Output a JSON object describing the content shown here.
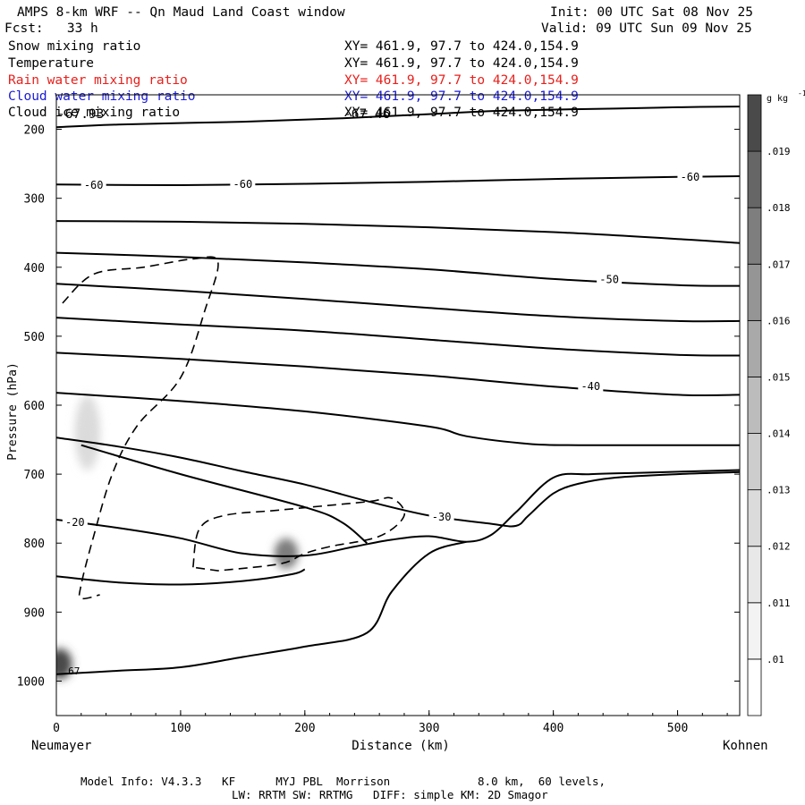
{
  "header": {
    "title": "AMPS 8-km WRF -- Qn Maud Land Coast window",
    "init": "Init: 00 UTC Sat 08 Nov 25",
    "fcst": "Fcst:   33 h",
    "valid": "Valid: 09 UTC Sun 09 Nov 25"
  },
  "fields": [
    {
      "name": "Snow mixing ratio",
      "xy": "XY= 461.9, 97.7 to 424.0,154.9",
      "color": "#000000"
    },
    {
      "name": "Temperature",
      "xy": "XY= 461.9, 97.7 to 424.0,154.9",
      "color": "#000000"
    },
    {
      "name": "Rain water mixing ratio",
      "xy": "XY= 461.9, 97.7 to 424.0,154.9",
      "color": "#e8201c"
    },
    {
      "name": "Cloud water mixing ratio",
      "xy": "XY= 461.9, 97.7 to 424.0,154.9",
      "color": "#1a1ad8"
    },
    {
      "name": "Cloud ice mixing ratio",
      "xy": "XY= 461.9, 97.7 to 424.0,154.9",
      "color": "#000000"
    }
  ],
  "overlay_labels": {
    "top_left": "-67.93",
    "top_mid": "-67.46"
  },
  "footer": {
    "line1": "Model Info: V4.3.3   KF      MYJ PBL  Morrison             8.0 km,  60 levels,",
    "line2": "LW: RRTM SW: RRTMG   DIFF: simple KM: 2D Smagor"
  },
  "chart_data": {
    "type": "cross-section",
    "xlabel": "Distance (km)",
    "ylabel": "Pressure (hPa)",
    "xlim": [
      0,
      550
    ],
    "ylim": [
      1050,
      150
    ],
    "x_ticks": [
      0,
      100,
      200,
      300,
      400,
      500
    ],
    "y_ticks": [
      200,
      300,
      400,
      500,
      600,
      700,
      800,
      900,
      1000
    ],
    "x_end_labels": {
      "left": "Neumayer",
      "right": "Kohnen"
    },
    "colorbar": {
      "unit": "g kg",
      "unit_exp": "-1",
      "levels": [
        ".01",
        ".011",
        ".012",
        ".013",
        ".014",
        ".015",
        ".016",
        ".017",
        ".018",
        ".019"
      ],
      "colors": [
        "#ffffff",
        "#f3f3f3",
        "#e8e8e8",
        "#dbdbdb",
        "#cdcdcd",
        "#bcbcbc",
        "#a9a9a9",
        "#959595",
        "#7e7e7e",
        "#666666",
        "#4a4a4a"
      ]
    },
    "temperature_contours": [
      {
        "level": null,
        "points": [
          [
            0,
            197
          ],
          [
            50,
            193
          ],
          [
            150,
            189
          ],
          [
            230,
            184
          ],
          [
            300,
            178
          ],
          [
            360,
            173
          ],
          [
            450,
            170
          ],
          [
            500,
            168
          ],
          [
            550,
            167
          ]
        ]
      },
      {
        "level": -60,
        "points": [
          [
            0,
            280
          ],
          [
            100,
            281
          ],
          [
            200,
            279
          ],
          [
            300,
            276
          ],
          [
            400,
            272
          ],
          [
            500,
            269
          ],
          [
            550,
            268
          ]
        ]
      },
      {
        "level": null,
        "points": [
          [
            0,
            333
          ],
          [
            100,
            334
          ],
          [
            200,
            337
          ],
          [
            300,
            342
          ],
          [
            400,
            349
          ],
          [
            500,
            359
          ],
          [
            550,
            365
          ]
        ]
      },
      {
        "level": -50,
        "points": [
          [
            0,
            379
          ],
          [
            100,
            385
          ],
          [
            200,
            393
          ],
          [
            300,
            403
          ],
          [
            400,
            417
          ],
          [
            500,
            426
          ],
          [
            550,
            427
          ]
        ]
      },
      {
        "level": null,
        "points": [
          [
            0,
            424
          ],
          [
            100,
            434
          ],
          [
            200,
            446
          ],
          [
            300,
            459
          ],
          [
            400,
            471
          ],
          [
            500,
            478
          ],
          [
            550,
            478
          ]
        ]
      },
      {
        "level": null,
        "points": [
          [
            0,
            473
          ],
          [
            100,
            483
          ],
          [
            200,
            492
          ],
          [
            300,
            505
          ],
          [
            400,
            518
          ],
          [
            500,
            527
          ],
          [
            550,
            528
          ]
        ]
      },
      {
        "level": -40,
        "points": [
          [
            0,
            524
          ],
          [
            100,
            533
          ],
          [
            200,
            544
          ],
          [
            300,
            557
          ],
          [
            400,
            573
          ],
          [
            500,
            585
          ],
          [
            550,
            585
          ]
        ]
      },
      {
        "level": null,
        "points": [
          [
            0,
            582
          ],
          [
            100,
            594
          ],
          [
            200,
            609
          ],
          [
            300,
            631
          ],
          [
            330,
            645
          ],
          [
            380,
            656
          ],
          [
            420,
            658
          ],
          [
            500,
            658
          ],
          [
            550,
            658
          ]
        ]
      },
      {
        "level": -30,
        "points": [
          [
            0,
            647
          ],
          [
            50,
            660
          ],
          [
            100,
            676
          ],
          [
            150,
            696
          ],
          [
            200,
            715
          ],
          [
            250,
            739
          ],
          [
            300,
            760
          ],
          [
            350,
            772
          ],
          [
            370,
            775
          ],
          [
            380,
            760
          ],
          [
            400,
            728
          ],
          [
            420,
            714
          ],
          [
            450,
            705
          ],
          [
            500,
            700
          ],
          [
            550,
            697
          ]
        ]
      },
      {
        "level": null,
        "points": [
          [
            20,
            658
          ],
          [
            100,
            700
          ],
          [
            200,
            748
          ],
          [
            230,
            770
          ],
          [
            250,
            800
          ]
        ]
      },
      {
        "level": -20,
        "points": [
          [
            0,
            766
          ],
          [
            50,
            778
          ],
          [
            100,
            793
          ],
          [
            150,
            815
          ],
          [
            200,
            818
          ],
          [
            240,
            805
          ],
          [
            270,
            795
          ],
          [
            300,
            790
          ],
          [
            330,
            798
          ],
          [
            350,
            788
          ],
          [
            370,
            755
          ],
          [
            400,
            705
          ],
          [
            430,
            700
          ],
          [
            470,
            698
          ],
          [
            550,
            694
          ]
        ]
      },
      {
        "level": null,
        "points": [
          [
            0,
            848
          ],
          [
            50,
            857
          ],
          [
            100,
            860
          ],
          [
            150,
            855
          ],
          [
            190,
            845
          ],
          [
            200,
            838
          ]
        ]
      },
      {
        "level": null,
        "points": [
          [
            0,
            990
          ],
          [
            50,
            985
          ],
          [
            100,
            980
          ],
          [
            150,
            965
          ],
          [
            200,
            950
          ],
          [
            250,
            930
          ],
          [
            270,
            870
          ],
          [
            300,
            815
          ],
          [
            330,
            798
          ]
        ]
      }
    ],
    "cloud_ice_contour_dashed": {
      "points": [
        [
          5,
          452
        ],
        [
          30,
          410
        ],
        [
          70,
          400
        ],
        [
          110,
          388
        ],
        [
          130,
          392
        ],
        [
          120,
          460
        ],
        [
          100,
          560
        ],
        [
          65,
          630
        ],
        [
          45,
          700
        ],
        [
          30,
          790
        ],
        [
          20,
          860
        ],
        [
          20,
          880
        ],
        [
          35,
          875
        ]
      ]
    },
    "cloud_ice_contour_dashed_2": {
      "points": [
        [
          110,
          835
        ],
        [
          115,
          780
        ],
        [
          135,
          760
        ],
        [
          180,
          752
        ],
        [
          250,
          740
        ],
        [
          270,
          735
        ],
        [
          280,
          760
        ],
        [
          260,
          790
        ],
        [
          220,
          805
        ],
        [
          200,
          815
        ],
        [
          180,
          830
        ],
        [
          130,
          840
        ]
      ]
    },
    "shaded_features": [
      {
        "x": 25,
        "p": 640,
        "max": 0.012
      },
      {
        "x": 185,
        "p": 815,
        "max": 0.017
      },
      {
        "x": 3,
        "p": 975,
        "max": 0.019
      }
    ],
    "value_labels": [
      {
        "x": 8,
        "p": 985,
        "text": "67"
      }
    ]
  }
}
